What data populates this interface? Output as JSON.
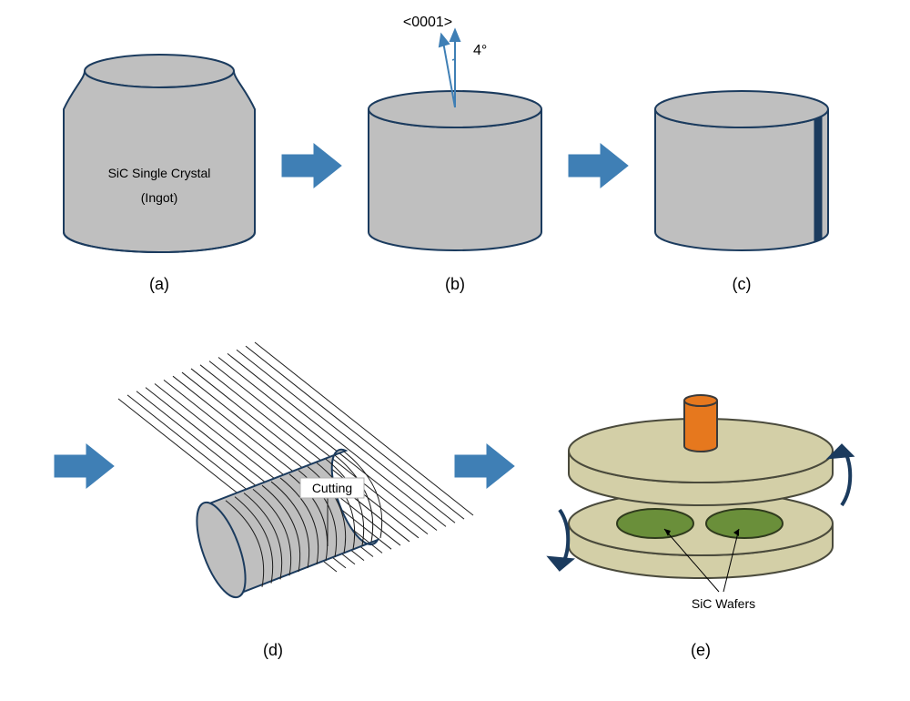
{
  "colors": {
    "shape_fill": "#bfbfbf",
    "shape_stroke": "#1b3b5e",
    "arrow_fill": "#3f7fb5",
    "arrow_stroke": "#3f7fb5",
    "angle_arrow": "#3f7fb5",
    "flat_mark": "#1b3b5e",
    "wire_stroke": "#1c1c1c",
    "plate_fill": "#d3cfa7",
    "plate_stroke": "#4a4a3c",
    "wafer_fill": "#6a8f3a",
    "wafer_stroke": "#2f3a1d",
    "shaft_fill": "#e6781e",
    "shaft_stroke": "#3a3a3a",
    "rot_arrow": "#1b3b5e",
    "cutting_box_fill": "#ffffff",
    "cutting_box_stroke": "#b0b0b0"
  },
  "stroke_width": 2,
  "panel_a": {
    "letter": "(a)",
    "label_line1": "SiC Single Crystal",
    "label_line2": "(Ingot)"
  },
  "panel_b": {
    "letter": "(b)",
    "direction_label": "<0001>",
    "angle_label": "4°"
  },
  "panel_c": {
    "letter": "(c)"
  },
  "panel_d": {
    "letter": "(d)",
    "cutting_label": "Cutting",
    "wire_count": 16
  },
  "panel_e": {
    "letter": "(e)",
    "wafer_label": "SiC Wafers"
  }
}
